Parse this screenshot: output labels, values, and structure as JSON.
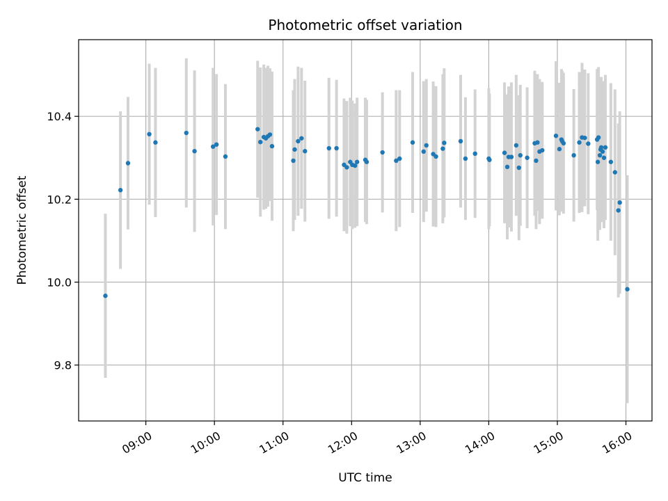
{
  "chart_data": {
    "type": "scatter",
    "title": "Photometric offset variation",
    "xlabel": "UTC time",
    "ylabel": "Photometric offset",
    "xlim_hours": [
      8.02,
      16.38
    ],
    "ylim": [
      9.665,
      10.585
    ],
    "grid": true,
    "yticks": [
      {
        "value": 9.8,
        "label": "9.8"
      },
      {
        "value": 10.0,
        "label": "10.0"
      },
      {
        "value": 10.2,
        "label": "10.2"
      },
      {
        "value": 10.4,
        "label": "10.4"
      }
    ],
    "xticks": [
      {
        "value": 9,
        "label": "09:00"
      },
      {
        "value": 10,
        "label": "10:00"
      },
      {
        "value": 11,
        "label": "11:00"
      },
      {
        "value": 12,
        "label": "12:00"
      },
      {
        "value": 13,
        "label": "13:00"
      },
      {
        "value": 14,
        "label": "14:00"
      },
      {
        "value": 15,
        "label": "15:00"
      },
      {
        "value": 16,
        "label": "16:00"
      }
    ],
    "colors": {
      "point": "#1f77b4",
      "errorbar": "#d3d3d3",
      "grid": "#b0b0b0"
    },
    "series": [
      {
        "name": "offset",
        "points": [
          [
            8.41,
            9.967,
            0.198
          ],
          [
            8.63,
            10.222,
            0.19
          ],
          [
            8.74,
            10.287,
            0.16
          ],
          [
            9.05,
            10.357,
            0.17
          ],
          [
            9.14,
            10.337,
            0.18
          ],
          [
            9.59,
            10.36,
            0.18
          ],
          [
            9.71,
            10.316,
            0.195
          ],
          [
            9.98,
            10.327,
            0.19
          ],
          [
            10.03,
            10.332,
            0.17
          ],
          [
            10.16,
            10.303,
            0.175
          ],
          [
            10.63,
            10.369,
            0.165
          ],
          [
            10.67,
            10.338,
            0.18
          ],
          [
            10.72,
            10.35,
            0.175
          ],
          [
            10.75,
            10.347,
            0.17
          ],
          [
            10.78,
            10.352,
            0.17
          ],
          [
            10.81,
            10.356,
            0.16
          ],
          [
            10.84,
            10.328,
            0.18
          ],
          [
            11.15,
            10.293,
            0.17
          ],
          [
            11.17,
            10.32,
            0.17
          ],
          [
            11.22,
            10.34,
            0.18
          ],
          [
            11.27,
            10.347,
            0.17
          ],
          [
            11.32,
            10.316,
            0.17
          ],
          [
            11.67,
            10.323,
            0.17
          ],
          [
            11.78,
            10.323,
            0.165
          ],
          [
            11.89,
            10.283,
            0.16
          ],
          [
            11.93,
            10.277,
            0.16
          ],
          [
            11.98,
            10.29,
            0.155
          ],
          [
            12.01,
            10.283,
            0.155
          ],
          [
            12.05,
            10.281,
            0.15
          ],
          [
            12.08,
            10.29,
            0.155
          ],
          [
            12.2,
            10.295,
            0.15
          ],
          [
            12.22,
            10.29,
            0.15
          ],
          [
            12.45,
            10.313,
            0.145
          ],
          [
            12.65,
            10.293,
            0.17
          ],
          [
            12.7,
            10.298,
            0.165
          ],
          [
            12.89,
            10.337,
            0.17
          ],
          [
            13.05,
            10.315,
            0.17
          ],
          [
            13.09,
            10.33,
            0.16
          ],
          [
            13.19,
            10.309,
            0.175
          ],
          [
            13.23,
            10.303,
            0.17
          ],
          [
            13.33,
            10.322,
            0.18
          ],
          [
            13.35,
            10.336,
            0.18
          ],
          [
            13.59,
            10.34,
            0.16
          ],
          [
            13.66,
            10.298,
            0.148
          ],
          [
            13.8,
            10.31,
            0.155
          ],
          [
            14.0,
            10.298,
            0.17
          ],
          [
            14.01,
            10.295,
            0.16
          ],
          [
            14.23,
            10.312,
            0.17
          ],
          [
            14.27,
            10.278,
            0.175
          ],
          [
            14.29,
            10.302,
            0.17
          ],
          [
            14.33,
            10.302,
            0.18
          ],
          [
            14.4,
            10.33,
            0.17
          ],
          [
            14.44,
            10.276,
            0.175
          ],
          [
            14.46,
            10.306,
            0.17
          ],
          [
            14.56,
            10.3,
            0.17
          ],
          [
            14.67,
            10.335,
            0.175
          ],
          [
            14.69,
            10.293,
            0.165
          ],
          [
            14.71,
            10.337,
            0.165
          ],
          [
            14.74,
            10.315,
            0.175
          ],
          [
            14.78,
            10.318,
            0.165
          ],
          [
            14.98,
            10.353,
            0.18
          ],
          [
            15.03,
            10.321,
            0.16
          ],
          [
            15.06,
            10.344,
            0.17
          ],
          [
            15.07,
            10.34,
            0.17
          ],
          [
            15.09,
            10.335,
            0.17
          ],
          [
            15.24,
            10.306,
            0.16
          ],
          [
            15.32,
            10.337,
            0.17
          ],
          [
            15.36,
            10.349,
            0.18
          ],
          [
            15.4,
            10.348,
            0.165
          ],
          [
            15.45,
            10.334,
            0.17
          ],
          [
            15.58,
            10.344,
            0.17
          ],
          [
            15.59,
            10.29,
            0.19
          ],
          [
            15.6,
            10.349,
            0.17
          ],
          [
            15.62,
            10.306,
            0.18
          ],
          [
            15.63,
            10.32,
            0.175
          ],
          [
            15.64,
            10.325,
            0.17
          ],
          [
            15.66,
            10.315,
            0.17
          ],
          [
            15.68,
            10.3,
            0.17
          ],
          [
            15.7,
            10.325,
            0.175
          ],
          [
            15.78,
            10.29,
            0.19
          ],
          [
            15.84,
            10.265,
            0.2
          ],
          [
            15.89,
            10.173,
            0.21
          ],
          [
            15.91,
            10.192,
            0.22
          ],
          [
            16.02,
            9.983,
            0.275
          ]
        ]
      }
    ]
  }
}
